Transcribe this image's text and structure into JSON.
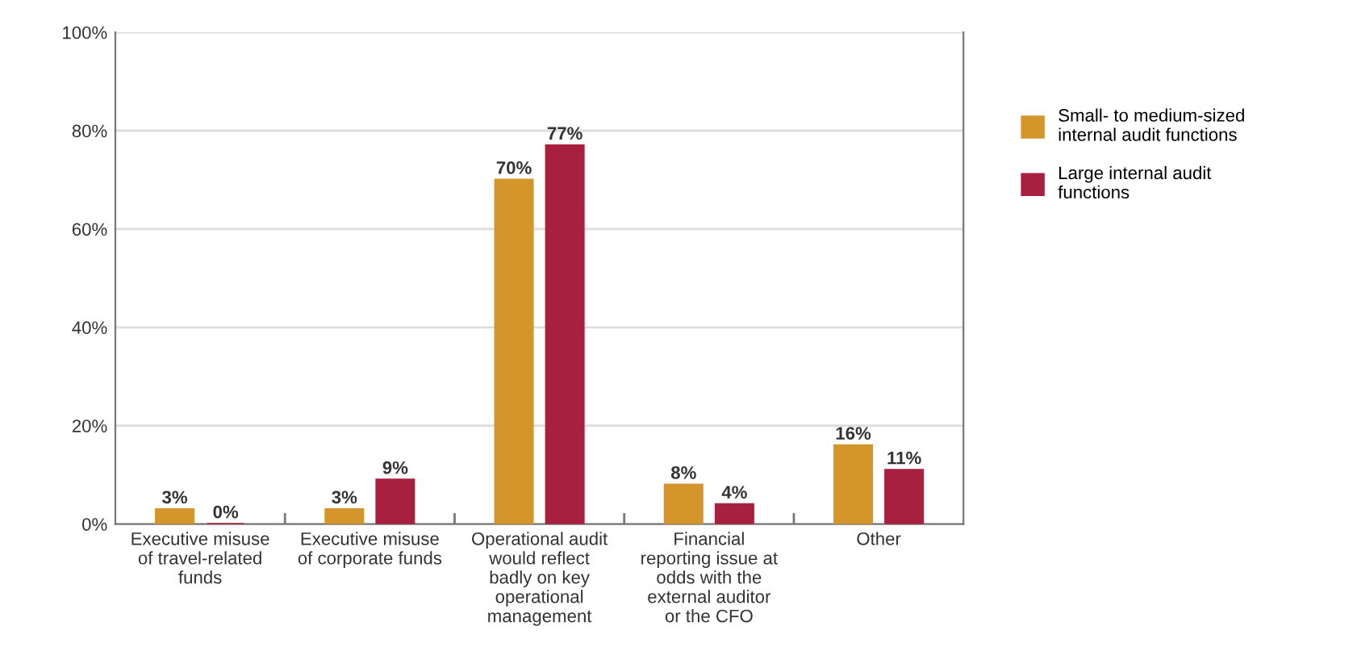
{
  "chart_data": {
    "type": "bar",
    "categories": [
      "Executive misuse of travel-related funds",
      "Executive misuse of corporate funds",
      "Operational audit would reflect badly on key operational management",
      "Financial reporting issue at odds with the external auditor or the CFO",
      "Other"
    ],
    "series": [
      {
        "name": "Small- to medium-sized internal audit functions",
        "color": "#d4962a",
        "values": [
          3,
          3,
          70,
          8,
          16
        ],
        "value_labels": [
          "3%",
          "3%",
          "70%",
          "8%",
          "16%"
        ]
      },
      {
        "name": "Large internal audit functions",
        "color": "#a8203f",
        "values": [
          0,
          9,
          77,
          4,
          11
        ],
        "value_labels": [
          "0%",
          "9%",
          "77%",
          "4%",
          "11%"
        ]
      }
    ],
    "ylim": [
      0,
      100
    ],
    "yticks": [
      {
        "value": 0,
        "label": "0%"
      },
      {
        "value": 20,
        "label": "20%"
      },
      {
        "value": 40,
        "label": "40%"
      },
      {
        "value": 60,
        "label": "60%"
      },
      {
        "value": 80,
        "label": "80%"
      },
      {
        "value": 100,
        "label": "100%"
      }
    ],
    "grid": "y",
    "legend": "right"
  }
}
